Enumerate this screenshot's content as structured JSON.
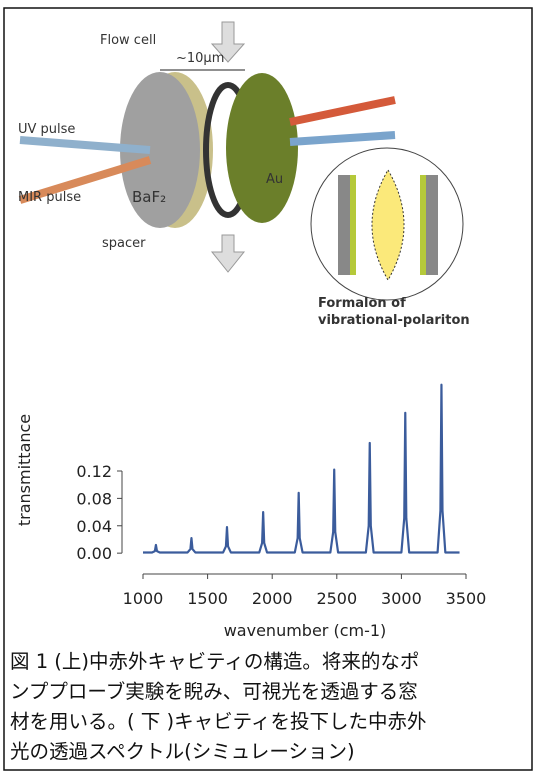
{
  "diagram": {
    "labels": {
      "flow_cell": "Flow cell",
      "gap": "~10μm",
      "uv": "UV pulse",
      "mir": "MIR pulse",
      "window": "BaF₂",
      "mirror": "Au",
      "spacer": "spacer",
      "formation": [
        "Formalon of",
        "vibrational-polariton"
      ]
    }
  },
  "chart_data": {
    "type": "line",
    "x_label": "wavenumber (cm-1)",
    "y_label": "transmittance",
    "x": [
      1000,
      1070,
      1092,
      1100,
      1108,
      1130,
      1345,
      1367,
      1375,
      1383,
      1405,
      1620,
      1642,
      1650,
      1658,
      1680,
      1900,
      1922,
      1930,
      1938,
      1960,
      2175,
      2197,
      2205,
      2213,
      2235,
      2450,
      2472,
      2480,
      2488,
      2510,
      2725,
      2747,
      2755,
      2763,
      2785,
      3000,
      3022,
      3030,
      3038,
      3060,
      3280,
      3302,
      3310,
      3318,
      3340,
      3450
    ],
    "series": [
      {
        "color": "#3b5c9c",
        "values": [
          0.001,
          0.001,
          0.003,
          0.012,
          0.003,
          0.001,
          0.001,
          0.006,
          0.022,
          0.006,
          0.001,
          0.001,
          0.01,
          0.038,
          0.01,
          0.001,
          0.001,
          0.015,
          0.06,
          0.015,
          0.001,
          0.001,
          0.022,
          0.088,
          0.022,
          0.001,
          0.001,
          0.031,
          0.122,
          0.031,
          0.001,
          0.001,
          0.04,
          0.161,
          0.04,
          0.001,
          0.001,
          0.051,
          0.205,
          0.051,
          0.001,
          0.001,
          0.062,
          0.246,
          0.062,
          0.001,
          0.001
        ]
      }
    ],
    "xlim": [
      1000,
      3500
    ],
    "xticks": [
      1000,
      1500,
      2000,
      2500,
      3000,
      3500
    ],
    "ylim": [
      -0.01,
      0.25
    ],
    "yticks": [
      {
        "value": 0,
        "label": "0.00"
      },
      {
        "value": 0.04,
        "label": "0.04"
      },
      {
        "value": 0.08,
        "label": "0.08"
      },
      {
        "value": 0.12,
        "label": "0.12"
      }
    ]
  },
  "caption": [
    "図 1 (上)中赤外キャビティの構造。将来的なポ",
    "ンププローブ実験を睨み、可視光を透過する窓",
    "材を用いる。( 下 )キャビティを投下した中赤外",
    "光の透過スペクトル(シミュレーション)"
  ]
}
